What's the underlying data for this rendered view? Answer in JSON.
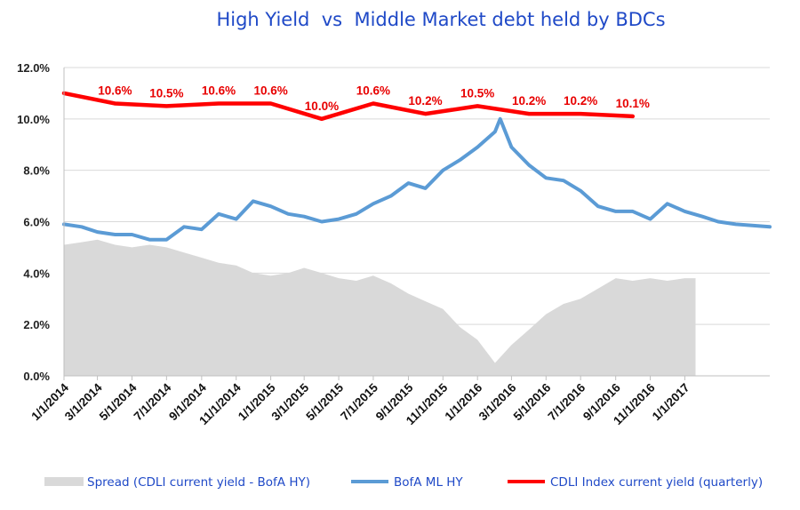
{
  "chart_data": {
    "type": "line",
    "title": "High Yield  vs  Middle Market debt held by BDCs",
    "xlabel": "",
    "ylabel": "",
    "ylim": [
      0,
      12
    ],
    "y_ticks": [
      "0.0%",
      "2.0%",
      "4.0%",
      "6.0%",
      "8.0%",
      "10.0%",
      "12.0%"
    ],
    "y_tick_values": [
      0,
      2,
      4,
      6,
      8,
      10,
      12
    ],
    "x_range": [
      "1/1/2014",
      "5/31/2017"
    ],
    "x_ticks": [
      "1/1/2014",
      "3/1/2014",
      "5/1/2014",
      "7/1/2014",
      "9/1/2014",
      "11/1/2014",
      "1/1/2015",
      "3/1/2015",
      "5/1/2015",
      "7/1/2015",
      "9/1/2015",
      "11/1/2015",
      "1/1/2016",
      "3/1/2016",
      "5/1/2016",
      "7/1/2016",
      "9/1/2016",
      "11/1/2016",
      "1/1/2017"
    ],
    "grid": "horizontal",
    "legend_position": "bottom",
    "series": [
      {
        "name": "Spread (CDLI current yield - BofA HY)",
        "kind": "area",
        "color": "#d9d9d9",
        "x": [
          "1/1/2014",
          "2/1/2014",
          "3/1/2014",
          "4/1/2014",
          "5/1/2014",
          "6/1/2014",
          "7/1/2014",
          "8/1/2014",
          "9/1/2014",
          "10/1/2014",
          "11/1/2014",
          "12/1/2014",
          "1/1/2015",
          "2/1/2015",
          "3/1/2015",
          "4/1/2015",
          "5/1/2015",
          "6/1/2015",
          "7/1/2015",
          "8/1/2015",
          "9/1/2015",
          "10/1/2015",
          "11/1/2015",
          "12/1/2015",
          "1/1/2016",
          "2/1/2016",
          "3/1/2016",
          "4/1/2016",
          "5/1/2016",
          "6/1/2016",
          "7/1/2016",
          "8/1/2016",
          "9/1/2016",
          "10/1/2016",
          "11/1/2016",
          "12/1/2016",
          "1/1/2017",
          "1/20/2017"
        ],
        "values": [
          5.1,
          5.2,
          5.3,
          5.1,
          5.0,
          5.1,
          5.0,
          4.8,
          4.6,
          4.4,
          4.3,
          4.0,
          3.9,
          4.0,
          4.2,
          4.0,
          3.8,
          3.7,
          3.9,
          3.6,
          3.2,
          2.9,
          2.6,
          1.9,
          1.4,
          0.5,
          1.2,
          1.8,
          2.4,
          2.8,
          3.0,
          3.4,
          3.8,
          3.7,
          3.8,
          3.7,
          3.8,
          3.8
        ]
      },
      {
        "name": "BofA ML HY",
        "kind": "line",
        "color": "#5b9bd5",
        "x": [
          "1/1/2014",
          "2/1/2014",
          "3/1/2014",
          "4/1/2014",
          "5/1/2014",
          "6/1/2014",
          "7/1/2014",
          "8/1/2014",
          "9/1/2014",
          "10/1/2014",
          "11/1/2014",
          "12/1/2014",
          "1/1/2015",
          "2/1/2015",
          "3/1/2015",
          "4/1/2015",
          "5/1/2015",
          "6/1/2015",
          "7/1/2015",
          "8/1/2015",
          "9/1/2015",
          "10/1/2015",
          "11/1/2015",
          "12/1/2015",
          "1/1/2016",
          "2/1/2016",
          "2/10/2016",
          "3/1/2016",
          "4/1/2016",
          "5/1/2016",
          "6/1/2016",
          "7/1/2016",
          "8/1/2016",
          "9/1/2016",
          "10/1/2016",
          "11/1/2016",
          "12/1/2016",
          "1/1/2017",
          "2/1/2017",
          "3/1/2017",
          "4/1/2017",
          "5/31/2017"
        ],
        "values": [
          5.9,
          5.8,
          5.6,
          5.5,
          5.5,
          5.3,
          5.3,
          5.8,
          5.7,
          6.3,
          6.1,
          6.8,
          6.6,
          6.3,
          6.2,
          6.0,
          6.1,
          6.3,
          6.7,
          7.0,
          7.5,
          7.3,
          8.0,
          8.4,
          8.9,
          9.5,
          10.0,
          8.9,
          8.2,
          7.7,
          7.6,
          7.2,
          6.6,
          6.4,
          6.4,
          6.1,
          6.7,
          6.4,
          6.2,
          6.0,
          5.9,
          5.8
        ]
      },
      {
        "name": "CDLI Index current yield (quarterly)",
        "kind": "line",
        "color": "#ff0000",
        "x": [
          "1/1/2014",
          "4/1/2014",
          "7/1/2014",
          "10/1/2014",
          "1/1/2015",
          "4/1/2015",
          "7/1/2015",
          "10/1/2015",
          "1/1/2016",
          "4/1/2016",
          "7/1/2016",
          "10/1/2016"
        ],
        "values": [
          11.0,
          10.6,
          10.5,
          10.6,
          10.6,
          10.0,
          10.6,
          10.2,
          10.5,
          10.2,
          10.2,
          10.1
        ],
        "labels": [
          "",
          "10.6%",
          "10.5%",
          "10.6%",
          "10.6%",
          "10.0%",
          "10.6%",
          "10.2%",
          "10.5%",
          "10.2%",
          "10.2%",
          "10.1%"
        ]
      }
    ]
  }
}
